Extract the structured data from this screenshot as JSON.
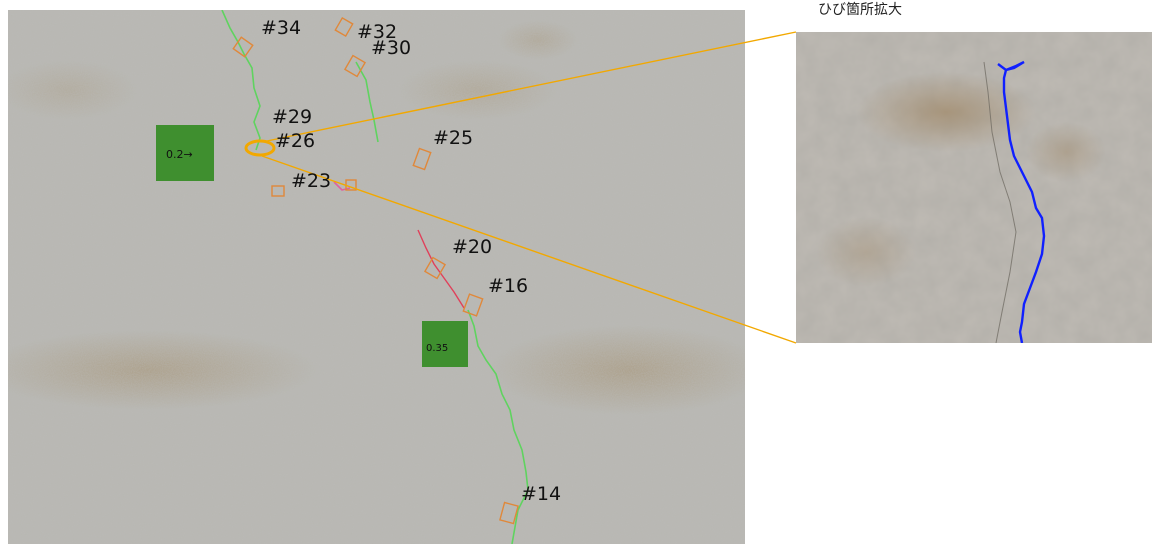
{
  "zoom_panel": {
    "title": "ひび箇所拡大"
  },
  "markers": {
    "m34": "#34",
    "m32": "#32",
    "m30": "#30",
    "m29": "#29",
    "m26": "#26",
    "m25": "#25",
    "m23": "#23",
    "m20": "#20",
    "m16": "#16",
    "m14": "#14"
  },
  "tags": {
    "tag_upper": "0.2→",
    "tag_lower": "0.35"
  },
  "colors": {
    "wall": "#b9b8b2",
    "crack_green": "#5fd35f",
    "crack_red": "#e0405a",
    "crack_blue": "#1020ff",
    "marker_orange": "#e0883a",
    "callout": "#f2a800",
    "tag_green": "#3f8f2f"
  }
}
